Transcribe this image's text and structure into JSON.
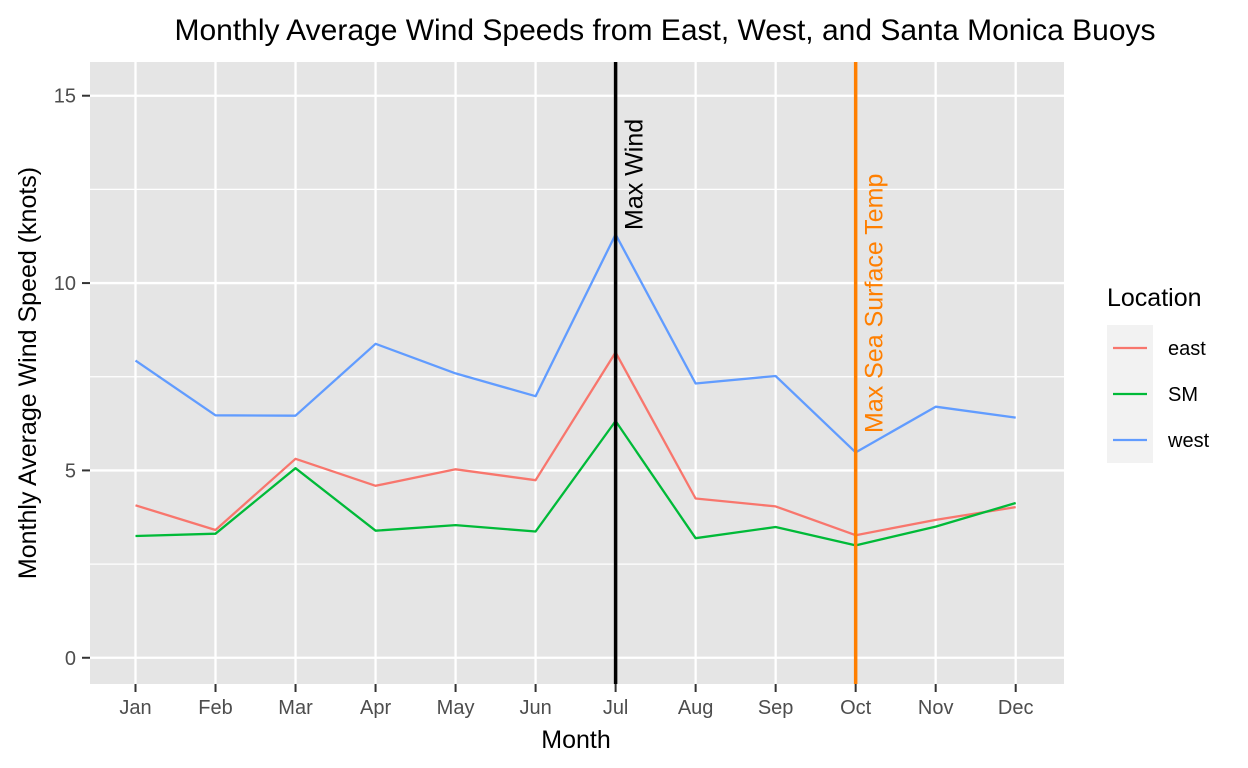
{
  "chart_data": {
    "type": "line",
    "title": "Monthly Average Wind Speeds from East, West, and Santa Monica Buoys",
    "xlabel": "Month",
    "ylabel": "Monthly Average Wind Speed (knots)",
    "categories": [
      "Jan",
      "Feb",
      "Mar",
      "Apr",
      "May",
      "Jun",
      "Jul",
      "Aug",
      "Sep",
      "Oct",
      "Nov",
      "Dec"
    ],
    "ylim": [
      -0.7,
      15.9
    ],
    "yticks": [
      0,
      5,
      10,
      15
    ],
    "grid": true,
    "legend": {
      "title": "Location",
      "position": "right"
    },
    "series": [
      {
        "name": "east",
        "color": "#F8766D",
        "values": [
          4.07,
          3.41,
          5.31,
          4.59,
          5.03,
          4.74,
          8.15,
          4.25,
          4.04,
          3.27,
          3.68,
          4.02
        ]
      },
      {
        "name": "SM",
        "color": "#00BA38",
        "values": [
          3.25,
          3.31,
          5.06,
          3.39,
          3.54,
          3.37,
          6.32,
          3.19,
          3.49,
          3.0,
          3.5,
          4.13
        ]
      },
      {
        "name": "west",
        "color": "#619CFF",
        "values": [
          7.93,
          6.47,
          6.46,
          8.38,
          7.59,
          6.98,
          11.3,
          7.32,
          7.52,
          5.48,
          6.7,
          6.41
        ]
      }
    ],
    "vlines": [
      {
        "x": "Jul",
        "label": "Max Wind",
        "color": "#000000"
      },
      {
        "x": "Oct",
        "label": "Max Sea Surface Temp",
        "color": "#FF7F00"
      }
    ],
    "background": "#E5E5E5",
    "gridcolor": "#FFFFFF"
  }
}
